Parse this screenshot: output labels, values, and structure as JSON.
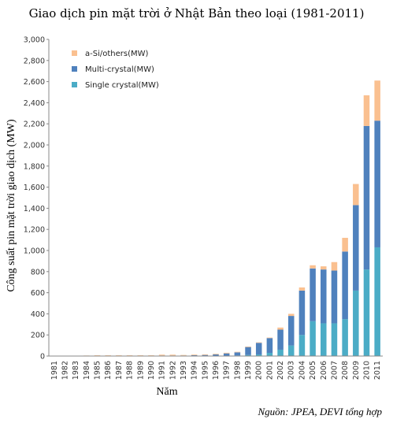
{
  "chart_data": {
    "type": "bar",
    "stacked": true,
    "title": "Giao dịch pin mặt trời ở Nhật Bản theo loại (1981-2011)",
    "xlabel": "Năm",
    "ylabel": "Công suất pin mặt trời giao dịch (MW)",
    "ylim": [
      0,
      3000
    ],
    "yticks": [
      0,
      200,
      400,
      600,
      800,
      1000,
      1200,
      1400,
      1600,
      1800,
      2000,
      2200,
      2400,
      2600,
      2800,
      3000
    ],
    "ytick_labels": [
      "0",
      "200",
      "400",
      "600",
      "800",
      "1,000",
      "1,200",
      "1,400",
      "1,600",
      "1,800",
      "2,000",
      "2,200",
      "2,400",
      "2,600",
      "2,800",
      "3,000"
    ],
    "grid": false,
    "legend_position": "top-left",
    "categories": [
      "1981",
      "1982",
      "1983",
      "1984",
      "1985",
      "1986",
      "1987",
      "1988",
      "1989",
      "1990",
      "1991",
      "1992",
      "1993",
      "1994",
      "1995",
      "1996",
      "1997",
      "1998",
      "1999",
      "2000",
      "2001",
      "2002",
      "2003",
      "2004",
      "2005",
      "2006",
      "2007",
      "2008",
      "2009",
      "2010",
      "2011"
    ],
    "series": [
      {
        "name": "Single crystal(MW)",
        "color": "#4bacc6",
        "values": [
          0,
          0,
          0,
          0,
          0,
          0,
          0,
          0,
          0,
          0,
          0,
          0,
          0,
          0,
          0,
          0,
          0,
          5,
          10,
          15,
          30,
          60,
          100,
          200,
          330,
          310,
          310,
          350,
          620,
          820,
          1030
        ]
      },
      {
        "name": "Multi-crystal(MW)",
        "color": "#4f81bd",
        "values": [
          0,
          0,
          0,
          0,
          1,
          1,
          1,
          1,
          1,
          1,
          5,
          5,
          5,
          8,
          10,
          15,
          25,
          30,
          75,
          110,
          140,
          190,
          280,
          420,
          500,
          510,
          500,
          640,
          810,
          1360,
          1200
        ]
      },
      {
        "name": "a-Si/others(MW)",
        "color": "#fac090",
        "values": [
          2,
          2,
          3,
          5,
          6,
          6,
          6,
          6,
          6,
          6,
          8,
          8,
          5,
          6,
          6,
          6,
          6,
          5,
          5,
          5,
          5,
          20,
          20,
          30,
          30,
          30,
          80,
          130,
          200,
          290,
          380
        ]
      }
    ]
  },
  "source": "Nguồn: JPEA, DEVI tổng hợp"
}
